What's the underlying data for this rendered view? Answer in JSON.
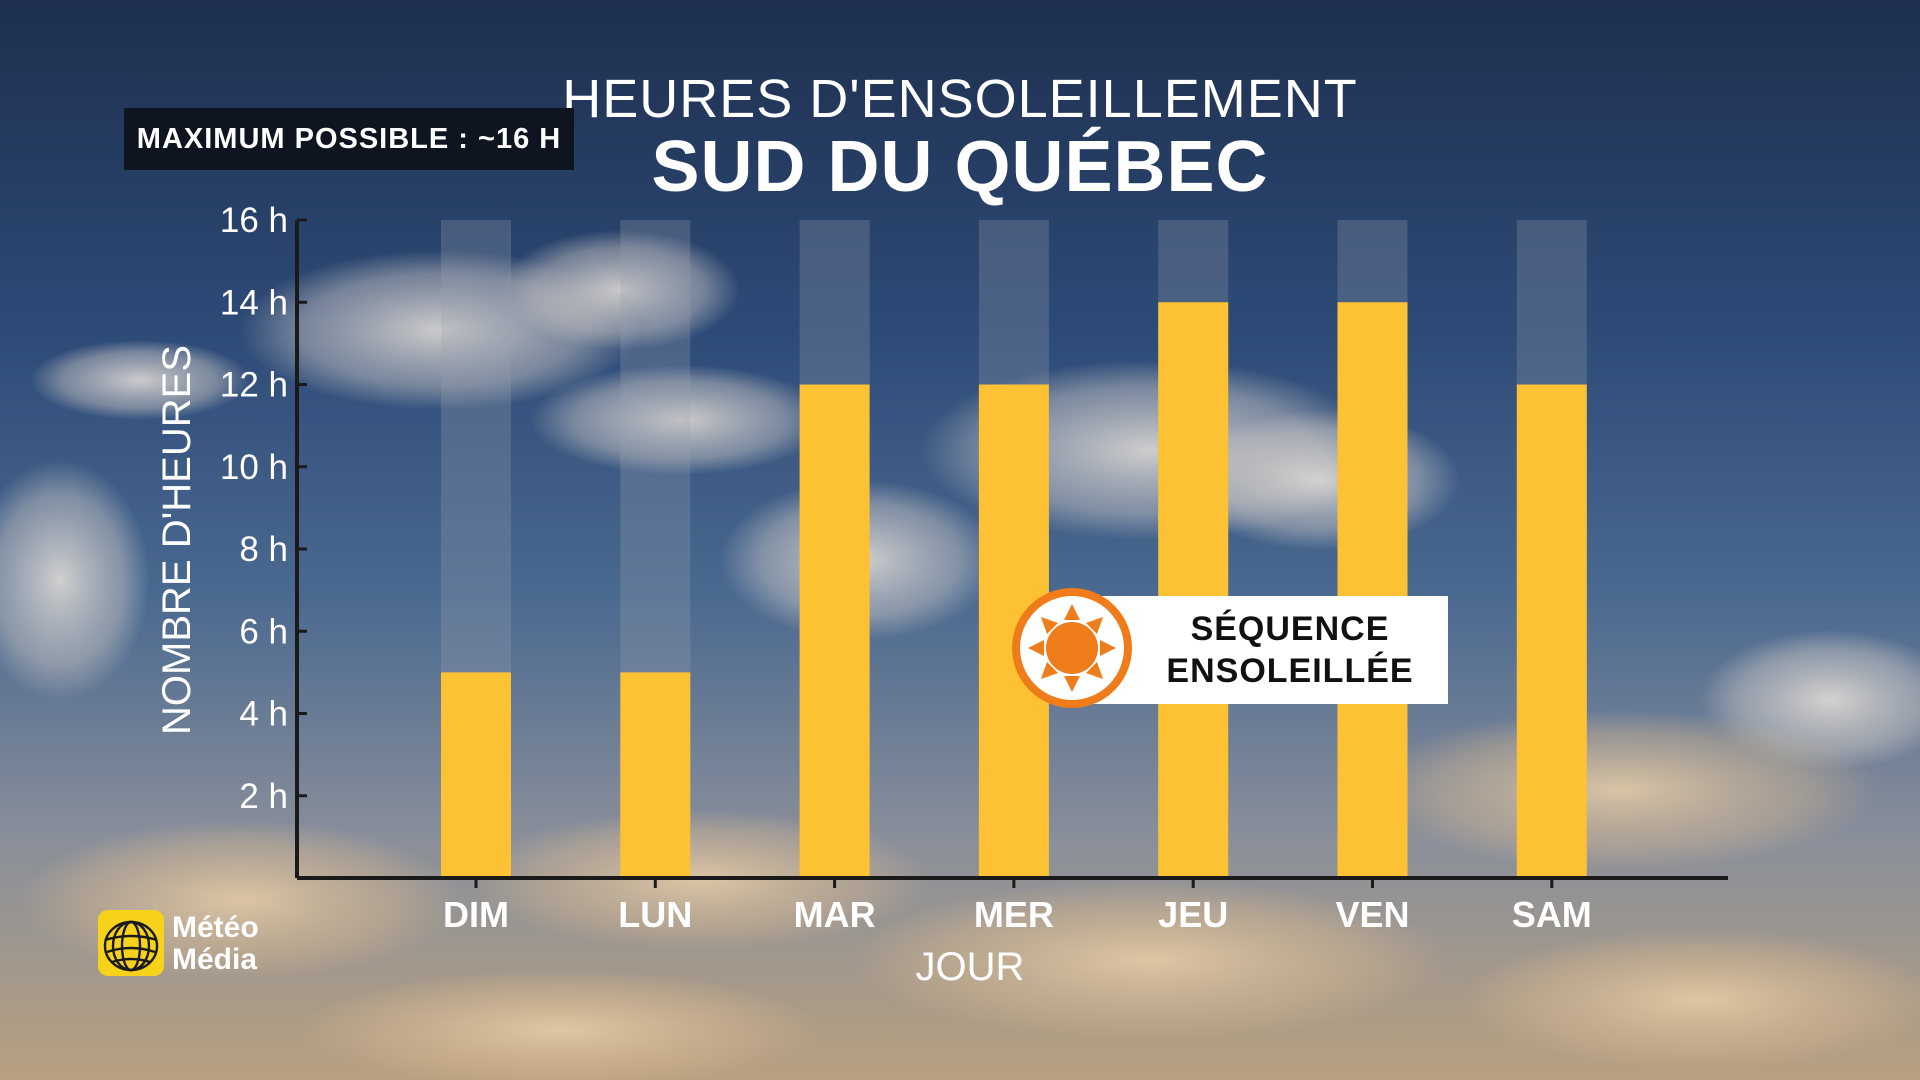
{
  "title": "HEURES D'ENSOLEILLEMENT",
  "subtitle": "SUD DU QUÉBEC",
  "max_label": "MAXIMUM POSSIBLE : ~16 H",
  "badge": {
    "line1": "SÉQUENCE",
    "line2": "ENSOLEILLÉE",
    "icon": "sun-icon"
  },
  "logo": {
    "line1": "Météo",
    "line2": "Média",
    "icon": "meteo-media-globe-icon"
  },
  "colors": {
    "bar": "#fdc233",
    "bar_background": "#9aa2b0",
    "axis": "#1a1a1a",
    "badge_accent": "#ef7c1a"
  },
  "chart_data": {
    "type": "bar",
    "categories": [
      "DIM",
      "LUN",
      "MAR",
      "MER",
      "JEU",
      "VEN",
      "SAM"
    ],
    "values": [
      5,
      5,
      12,
      12,
      14,
      14,
      12
    ],
    "max_possible": 16,
    "ylim": [
      0,
      16
    ],
    "yticks": [
      2,
      4,
      6,
      8,
      10,
      12,
      14,
      16
    ],
    "ytick_suffix": " h",
    "xlabel": "JOUR",
    "ylabel": "NOMBRE D'HEURES",
    "grid": false
  }
}
